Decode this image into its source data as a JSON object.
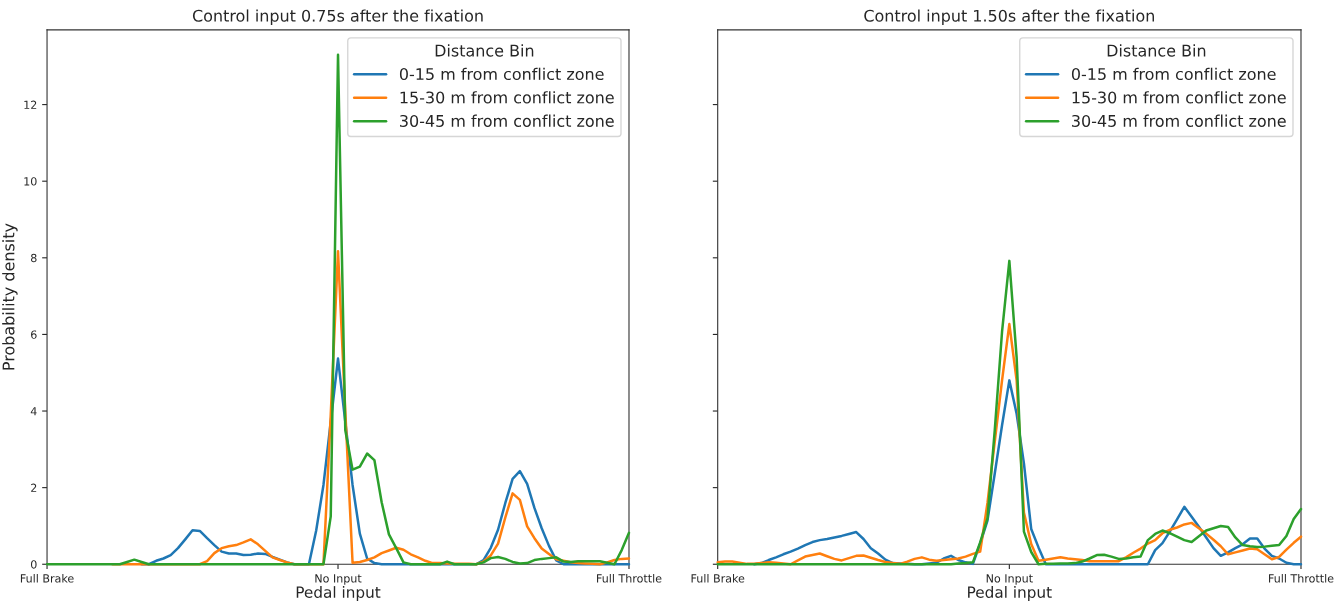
{
  "chart_data": [
    {
      "type": "line",
      "title": "Control input 0.75s after the fixation",
      "xlabel": "Pedal input",
      "ylabel": "Probability density",
      "legend_title": "Distance Bin",
      "legend": "top right",
      "grid": false,
      "categories": [
        "Full Brake",
        null,
        null,
        null,
        null,
        null,
        null,
        null,
        null,
        null,
        null,
        null,
        null,
        null,
        null,
        null,
        null,
        null,
        null,
        null,
        null,
        null,
        null,
        null,
        null,
        null,
        null,
        null,
        null,
        null,
        null,
        null,
        null,
        null,
        null,
        null,
        null,
        null,
        null,
        null,
        "No Input",
        null,
        null,
        null,
        null,
        null,
        null,
        null,
        null,
        null,
        null,
        null,
        null,
        null,
        null,
        null,
        null,
        null,
        null,
        null,
        null,
        null,
        null,
        null,
        null,
        null,
        null,
        null,
        null,
        null,
        null,
        null,
        null,
        null,
        null,
        null,
        null,
        null,
        null,
        null,
        "Full Throttle"
      ],
      "ylim": [
        0,
        13.95
      ],
      "yticks": [
        0,
        2,
        4,
        6,
        8,
        10,
        12
      ],
      "series": [
        {
          "name": "0-15 m from conflict zone",
          "color": "#1f77b4",
          "values": [
            null,
            null,
            null,
            null,
            null,
            null,
            null,
            null,
            null,
            null,
            null,
            null,
            null,
            0,
            0,
            0.09,
            0.15,
            0.24,
            0.42,
            0.65,
            0.89,
            0.87,
            0.68,
            0.5,
            0.33,
            0.28,
            0.28,
            0.24,
            0.25,
            0.28,
            0.27,
            0.19,
            0.12,
            0.05,
            0,
            0,
            0,
            0.88,
            2.07,
            3.72,
            5.37,
            3.72,
            2.07,
            0.8,
            0.15,
            0.03,
            0,
            0,
            0,
            0,
            0,
            0,
            0,
            0,
            0,
            0,
            0,
            0,
            0,
            0,
            0.11,
            0.43,
            0.9,
            1.6,
            2.23,
            2.43,
            2.1,
            1.47,
            0.94,
            0.48,
            0.1,
            0,
            0,
            0,
            0,
            0,
            0,
            0,
            0,
            0,
            0
          ]
        },
        {
          "name": "15-30 m from conflict zone",
          "color": "#ff7f0e",
          "values": [
            null,
            null,
            null,
            null,
            null,
            null,
            null,
            null,
            null,
            0,
            0,
            0,
            0,
            0,
            0,
            0,
            0,
            0,
            0,
            0,
            0,
            0,
            0.08,
            0.29,
            0.42,
            0.47,
            0.5,
            0.57,
            0.65,
            0.52,
            0.35,
            0.18,
            0.11,
            0.05,
            0,
            0,
            0,
            0,
            0,
            3.9,
            8.17,
            4.0,
            0.04,
            0.06,
            0.11,
            0.18,
            0.29,
            0.36,
            0.43,
            0.38,
            0.26,
            0.18,
            0.09,
            0.03,
            0.03,
            0.02,
            0.01,
            0.01,
            0.01,
            0,
            0.07,
            0.23,
            0.54,
            1.22,
            1.85,
            1.68,
            0.99,
            0.68,
            0.41,
            0.27,
            0.13,
            0.09,
            0.05,
            0.03,
            0.02,
            0.01,
            0,
            0.05,
            0.11,
            0.14,
            0.15
          ]
        },
        {
          "name": "30-45 m from conflict zone",
          "color": "#2ca02c",
          "values": [
            0,
            0,
            0,
            0,
            0,
            0,
            0,
            0,
            0,
            0,
            0,
            0.06,
            0.12,
            0.06,
            0,
            0,
            0,
            0,
            0,
            0,
            0,
            0,
            0,
            0,
            0,
            0,
            0,
            0,
            0,
            0,
            0,
            0,
            0,
            0,
            0,
            0,
            0,
            0,
            0,
            1.25,
            13.3,
            3.5,
            2.47,
            2.55,
            2.89,
            2.72,
            1.62,
            0.78,
            0.42,
            0.05,
            0,
            0,
            0,
            0,
            0,
            0.07,
            0,
            0,
            0,
            0,
            0.05,
            0.16,
            0.19,
            0.14,
            0.06,
            0.02,
            0.03,
            0.11,
            0.14,
            0.16,
            0.18,
            0.07,
            0.06,
            0.08,
            0.08,
            0.08,
            0.08,
            0.04,
            0,
            0.37,
            0.82
          ]
        }
      ]
    },
    {
      "type": "line",
      "title": "Control input 1.50s after the fixation",
      "xlabel": "Pedal input",
      "legend_title": "Distance Bin",
      "legend": "top right",
      "grid": false,
      "tick_labels": "x",
      "categories": [
        "Full Brake",
        null,
        null,
        null,
        null,
        null,
        null,
        null,
        null,
        null,
        null,
        null,
        null,
        null,
        null,
        null,
        null,
        null,
        null,
        null,
        null,
        null,
        null,
        null,
        null,
        null,
        null,
        null,
        null,
        null,
        null,
        null,
        null,
        null,
        null,
        null,
        null,
        null,
        null,
        null,
        "No Input",
        null,
        null,
        null,
        null,
        null,
        null,
        null,
        null,
        null,
        null,
        null,
        null,
        null,
        null,
        null,
        null,
        null,
        null,
        null,
        null,
        null,
        null,
        null,
        null,
        null,
        null,
        null,
        null,
        null,
        null,
        null,
        null,
        null,
        null,
        null,
        null,
        null,
        null,
        null,
        "Full Throttle"
      ],
      "ylim": [
        0,
        13.95
      ],
      "yticks": [
        0,
        2,
        4,
        6,
        8,
        10,
        12
      ],
      "series": [
        {
          "name": "0-15 m from conflict zone",
          "color": "#1f77b4",
          "values": [
            null,
            null,
            null,
            null,
            null,
            0,
            0.03,
            0.11,
            0.18,
            0.26,
            0.33,
            0.41,
            0.5,
            0.58,
            0.63,
            0.66,
            0.7,
            0.74,
            0.79,
            0.84,
            0.66,
            0.42,
            0.28,
            0.12,
            0.03,
            0.02,
            0.01,
            0,
            0,
            0.02,
            0.04,
            0.15,
            0.22,
            0.11,
            0.05,
            0.01,
            0.54,
            1.14,
            2.37,
            3.63,
            4.8,
            3.93,
            2.63,
            0.92,
            0.44,
            0,
            0,
            0,
            0,
            0,
            0,
            0,
            0,
            0,
            0,
            0,
            0,
            0,
            0,
            0,
            0.37,
            0.55,
            0.85,
            1.17,
            1.5,
            1.24,
            0.98,
            0.7,
            0.42,
            0.22,
            0.31,
            0.42,
            0.52,
            0.67,
            0.67,
            0.41,
            0.22,
            0.15,
            0.04,
            0,
            0
          ]
        },
        {
          "name": "15-30 m from conflict zone",
          "color": "#ff7f0e",
          "values": [
            0.05,
            0.07,
            0.07,
            0.04,
            0.01,
            0.01,
            0.03,
            0.05,
            0.04,
            0.02,
            0,
            0.1,
            0.2,
            0.24,
            0.28,
            0.21,
            0.14,
            0.1,
            0.16,
            0.22,
            0.23,
            0.17,
            0.11,
            0.06,
            0.03,
            0.01,
            0.07,
            0.14,
            0.18,
            0.12,
            0.09,
            0.11,
            0.13,
            0.15,
            0.2,
            0.27,
            0.33,
            1.6,
            3.2,
            4.8,
            6.27,
            4.8,
            1.35,
            0.53,
            0.09,
            0.12,
            0.15,
            0.18,
            0.15,
            0.13,
            0.11,
            0.08,
            0.08,
            0.08,
            0.08,
            0.08,
            0.18,
            0.3,
            0.41,
            0.54,
            0.63,
            0.81,
            0.9,
            0.96,
            1.04,
            1.08,
            0.94,
            0.8,
            0.64,
            0.47,
            0.26,
            0.31,
            0.36,
            0.41,
            0.39,
            0.26,
            0.13,
            0.19,
            0.38,
            0.56,
            0.72
          ]
        },
        {
          "name": "30-45 m from conflict zone",
          "color": "#2ca02c",
          "values": [
            0,
            0,
            0,
            0,
            0,
            0,
            0,
            0,
            0,
            0,
            0,
            0,
            0,
            0,
            0,
            0,
            0,
            0,
            0,
            0,
            0,
            0,
            0,
            0,
            0,
            0,
            0,
            0,
            0,
            0,
            0,
            0,
            0,
            0.02,
            0.03,
            0.05,
            0.57,
            1.2,
            3.5,
            6.07,
            7.92,
            5.4,
            0.85,
            0.32,
            0,
            0.01,
            0.01,
            0.02,
            0.02,
            0.03,
            0.07,
            0.15,
            0.24,
            0.25,
            0.2,
            0.14,
            0.15,
            0.18,
            0.2,
            0.63,
            0.79,
            0.88,
            0.81,
            0.72,
            0.63,
            0.58,
            0.73,
            0.88,
            0.94,
            1.0,
            0.97,
            0.7,
            0.5,
            0.47,
            0.45,
            0.46,
            0.48,
            0.5,
            0.74,
            1.18,
            1.44
          ]
        }
      ]
    }
  ]
}
